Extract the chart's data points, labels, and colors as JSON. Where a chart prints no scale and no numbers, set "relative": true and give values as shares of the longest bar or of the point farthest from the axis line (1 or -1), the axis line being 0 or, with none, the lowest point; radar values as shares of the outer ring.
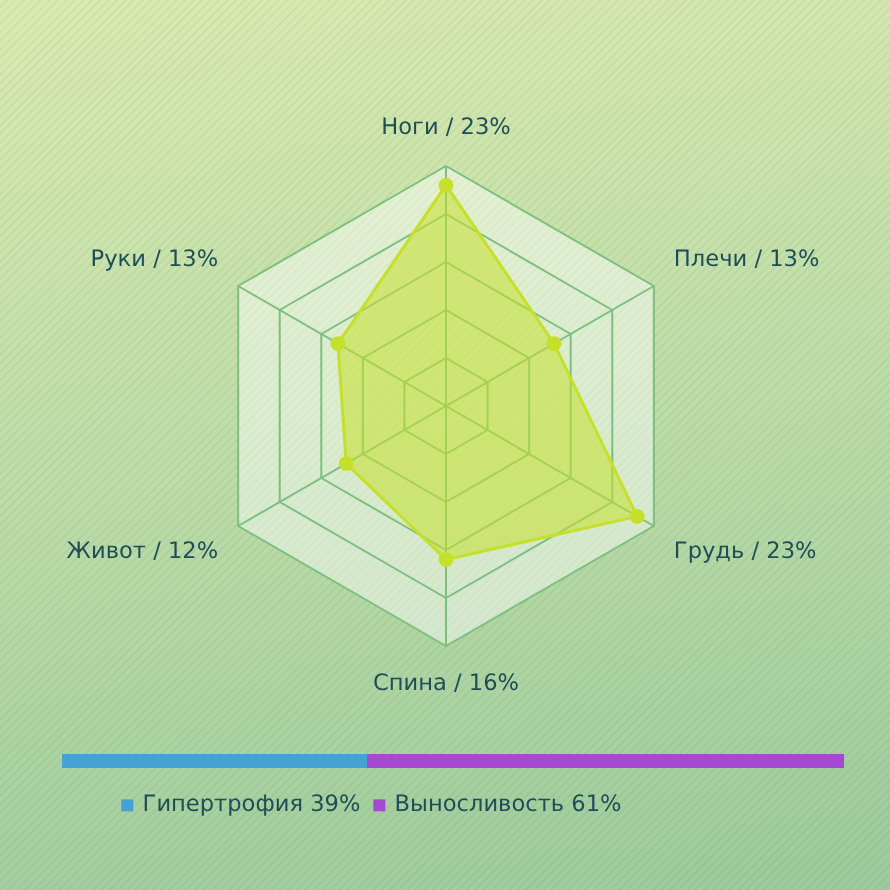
{
  "chart_data": [
    {
      "type": "radar",
      "categories": [
        "Ноги / 23%",
        "Плечи / 13%",
        "Грудь / 23%",
        "Спина / 16%",
        "Живот / 12%",
        "Руки / 13%"
      ],
      "relative": true,
      "grid": true,
      "marker": "circle",
      "series": [
        {
          "color": "#c5e02a",
          "values": [
            0.92,
            0.52,
            0.92,
            0.64,
            0.48,
            0.52
          ]
        }
      ]
    },
    {
      "type": "bar",
      "orientation": "horizontal",
      "stacked": true,
      "relative": true,
      "categories": [
        null
      ],
      "tick_labels": false,
      "legend": "bottom",
      "series": [
        {
          "name": "Гипертрофия 39%",
          "color": "#44a2d6",
          "values": [
            0.39
          ]
        },
        {
          "name": "Выносливость 61%",
          "color": "#a549d3",
          "values": [
            0.61
          ]
        }
      ]
    }
  ]
}
